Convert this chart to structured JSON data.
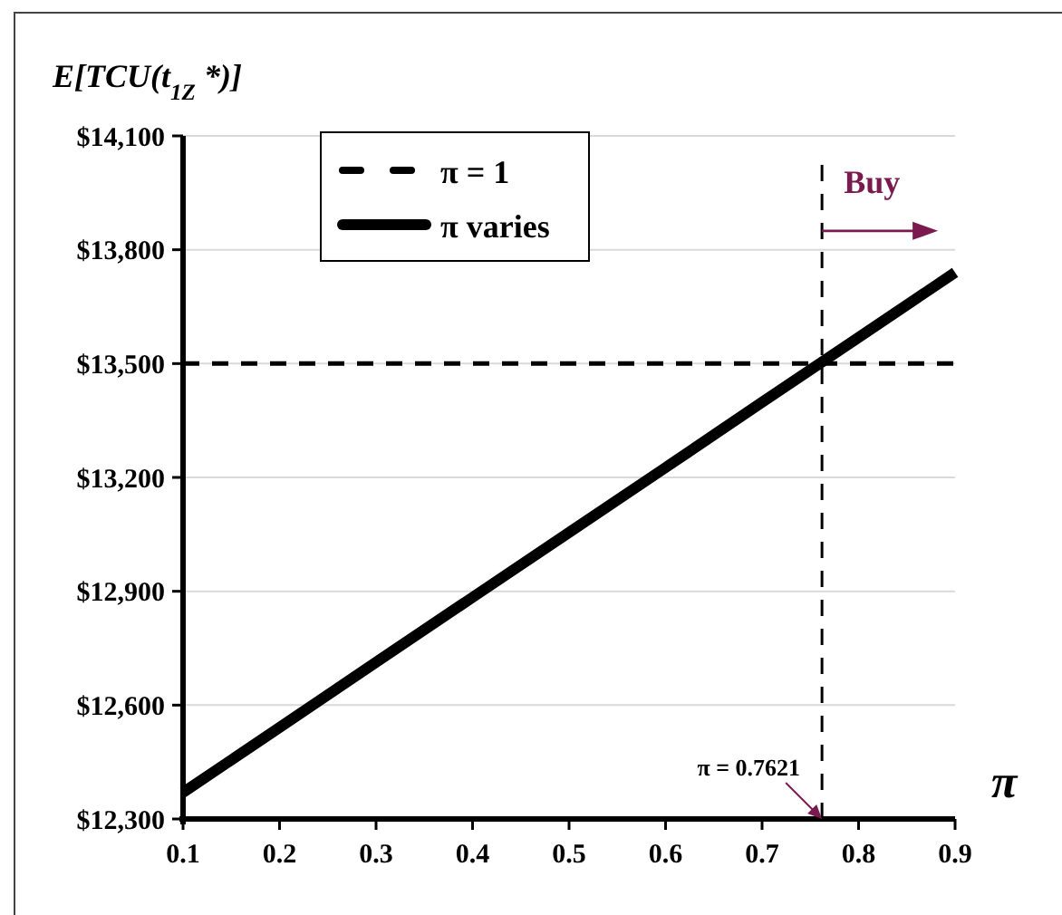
{
  "chart_data": {
    "type": "line",
    "ylabel": "E[TCU(t$_{1Z}$ *)]",
    "xlabel": "π",
    "x": [
      0.1,
      0.2,
      0.3,
      0.4,
      0.5,
      0.6,
      0.7,
      0.8,
      0.9
    ],
    "series": [
      {
        "name": "π = 1",
        "color": "#000000",
        "line_style": "dashed",
        "values": [
          13500,
          13500,
          13500,
          13500,
          13500,
          13500,
          13500,
          13500,
          13500
        ]
      },
      {
        "name": "π varies",
        "color": "#000000",
        "line_style": "solid",
        "values": [
          12370,
          12541,
          12713,
          12884,
          13055,
          13226,
          13398,
          13569,
          13740
        ]
      }
    ],
    "xlim": [
      0.1,
      0.9
    ],
    "xticks": [
      0.1,
      0.2,
      0.3,
      0.4,
      0.5,
      0.6,
      0.7,
      0.8,
      0.9
    ],
    "ylim": [
      12300,
      14100
    ],
    "yticks": [
      {
        "value": 12300,
        "label": "$12,300"
      },
      {
        "value": 12600,
        "label": "$12,600"
      },
      {
        "value": 12900,
        "label": "$12,900"
      },
      {
        "value": 13200,
        "label": "$13,200"
      },
      {
        "value": 13500,
        "label": "$13,500"
      },
      {
        "value": 13800,
        "label": "$13,800"
      },
      {
        "value": 14100,
        "label": "$14,100"
      }
    ],
    "ref_lines": [
      {
        "axis": "x",
        "value": 0.7621,
        "color": "#000000",
        "line_style": "dashed"
      }
    ],
    "annotations": [
      {
        "text": "Buy",
        "x": 0.7621,
        "y": 13950
      },
      {
        "text": "π = 0.7621",
        "x": 0.7621,
        "y": 12300
      }
    ],
    "grid": "y",
    "legend": "top left",
    "marker": "none"
  }
}
